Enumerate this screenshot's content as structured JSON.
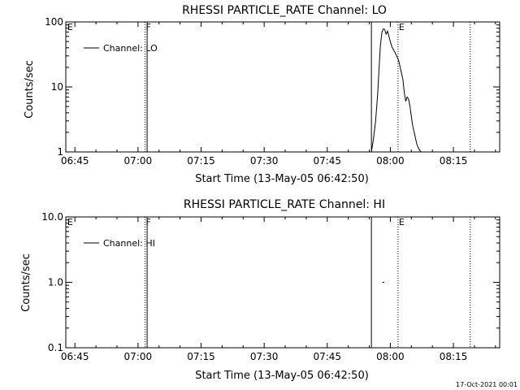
{
  "footer_timestamp": "17-Oct-2021 00:01",
  "chart_data": [
    {
      "type": "line",
      "title": "RHESSI PARTICLE_RATE Channel: LO",
      "xlabel": "Start Time (13-May-05 06:42:50)",
      "ylabel": "Counts/sec",
      "yscale": "log",
      "ylim": [
        1,
        100
      ],
      "xlim": [
        "06:42:50",
        "08:26:00"
      ],
      "x_ticks": [
        "06:45",
        "07:00",
        "07:15",
        "07:30",
        "07:45",
        "08:00",
        "08:15"
      ],
      "y_ticks": [
        "1",
        "10",
        "100"
      ],
      "legend": {
        "label": "Channel: LO",
        "position": "top-left"
      },
      "markers": [
        {
          "label": "E",
          "time": "06:43:00",
          "style": "none"
        },
        {
          "label": "F",
          "time": "07:01:40",
          "style": "dotted"
        },
        {
          "label": "",
          "time": "07:02:10",
          "style": "solid"
        },
        {
          "label": "",
          "time": "07:55:30",
          "style": "solid"
        },
        {
          "label": "E",
          "time": "08:01:50",
          "style": "dotted"
        },
        {
          "label": "",
          "time": "08:19:00",
          "style": "dotted"
        }
      ],
      "series": [
        {
          "name": "Channel: LO",
          "x": [
            "07:55:30",
            "07:56:00",
            "07:56:30",
            "07:57:00",
            "07:57:20",
            "07:57:40",
            "07:58:00",
            "07:58:20",
            "07:58:40",
            "07:59:00",
            "07:59:20",
            "07:59:40",
            "08:00:00",
            "08:00:20",
            "08:00:40",
            "08:01:00",
            "08:01:30",
            "08:02:00",
            "08:02:30",
            "08:03:00",
            "08:03:20",
            "08:03:40",
            "08:04:00",
            "08:04:20",
            "08:04:40",
            "08:05:00",
            "08:05:20",
            "08:05:40",
            "08:06:00",
            "08:06:20",
            "08:06:40",
            "08:07:00",
            "08:07:20"
          ],
          "values": [
            1.0,
            1.6,
            3.0,
            8.0,
            20.0,
            45.0,
            70.0,
            78.0,
            77.0,
            65.0,
            72.0,
            60.0,
            50.0,
            42.0,
            38.0,
            35.0,
            30.0,
            25.0,
            18.0,
            13.0,
            8.0,
            6.0,
            7.0,
            6.5,
            5.0,
            3.5,
            2.5,
            2.0,
            1.6,
            1.3,
            1.15,
            1.05,
            1.0
          ]
        }
      ]
    },
    {
      "type": "line",
      "title": "RHESSI PARTICLE_RATE Channel: HI",
      "xlabel": "Start Time (13-May-05 06:42:50)",
      "ylabel": "Counts/sec",
      "yscale": "log",
      "ylim": [
        0.1,
        10
      ],
      "xlim": [
        "06:42:50",
        "08:26:00"
      ],
      "x_ticks": [
        "06:45",
        "07:00",
        "07:15",
        "07:30",
        "07:45",
        "08:00",
        "08:15"
      ],
      "y_ticks": [
        "0.1",
        "1.0",
        "10.0"
      ],
      "legend": {
        "label": "Channel: HI",
        "position": "top-left"
      },
      "markers": [
        {
          "label": "E",
          "time": "06:43:00",
          "style": "none"
        },
        {
          "label": "F",
          "time": "07:01:40",
          "style": "dotted"
        },
        {
          "label": "",
          "time": "07:02:10",
          "style": "solid"
        },
        {
          "label": "",
          "time": "07:55:30",
          "style": "solid"
        },
        {
          "label": "E",
          "time": "08:01:50",
          "style": "dotted"
        },
        {
          "label": "",
          "time": "08:19:00",
          "style": "dotted"
        }
      ],
      "series": [
        {
          "name": "Channel: HI",
          "x": [
            "07:58:05",
            "07:58:35"
          ],
          "values": [
            1.0,
            1.0
          ]
        }
      ]
    }
  ]
}
